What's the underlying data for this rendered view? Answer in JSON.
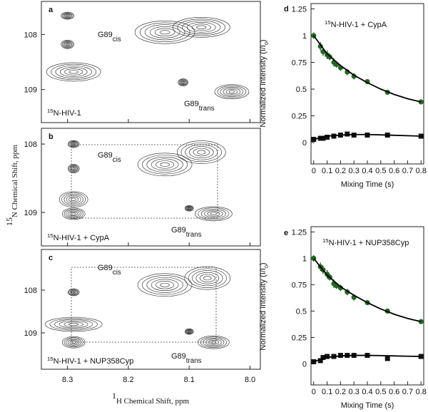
{
  "shared_axes": {
    "x_label": {
      "sup": "1",
      "text": "H Chemical Shift, ppm"
    },
    "y_label": {
      "sup": "15",
      "text": "N Chemical Shift, ppm"
    }
  },
  "chart_data": [
    {
      "type": "contour",
      "panel": "a",
      "xlim": [
        8.343,
        7.983
      ],
      "ylim": [
        109.6,
        107.4
      ],
      "xticks": [
        8.3,
        8.2,
        8.1,
        {
          "value": 8,
          "label": "8.0"
        }
      ],
      "yticks": [
        108,
        109
      ],
      "xtick_labels": false,
      "annotation": {
        "sup": "15",
        "text": "N-HIV-1"
      },
      "cis_label": {
        "text": "G89",
        "sub": "cis"
      },
      "trans_label": {
        "text": "G89",
        "sub": "trans"
      },
      "peaks": [
        {
          "x": 8.3,
          "y": 107.66
        },
        {
          "x": 8.3,
          "y": 108.18
        },
        {
          "x": 8.29,
          "y": 108.68
        },
        {
          "x": 8.14,
          "y": 107.96
        },
        {
          "x": 8.08,
          "y": 107.87
        },
        {
          "x": 8.11,
          "y": 108.87
        },
        {
          "x": 8.03,
          "y": 109.04
        }
      ]
    },
    {
      "type": "contour",
      "panel": "b",
      "xlim": [
        8.343,
        7.983
      ],
      "ylim": [
        109.49,
        107.77
      ],
      "xticks": [
        8.3,
        8.2,
        8.1,
        {
          "value": 8,
          "label": "8.0"
        }
      ],
      "yticks": [
        108,
        109
      ],
      "xtick_labels": false,
      "annotation": {
        "sup": "15",
        "text": "N-HIV-1 + CypA"
      },
      "cis_label": {
        "text": "G89",
        "sub": "cis"
      },
      "trans_label": {
        "text": "G89",
        "sub": "trans"
      },
      "peaks": [
        {
          "x": 8.29,
          "y": 108.0
        },
        {
          "x": 8.29,
          "y": 108.36
        },
        {
          "x": 8.29,
          "y": 108.81
        },
        {
          "x": 8.29,
          "y": 109.02
        },
        {
          "x": 8.14,
          "y": 108.3
        },
        {
          "x": 8.08,
          "y": 108.12
        },
        {
          "x": 8.1,
          "y": 108.94
        },
        {
          "x": 8.06,
          "y": 109.02
        }
      ]
    },
    {
      "type": "contour",
      "panel": "c",
      "xlim": [
        8.343,
        7.983
      ],
      "ylim": [
        109.85,
        107.05
      ],
      "xticks": [
        8.3,
        8.2,
        8.1,
        {
          "value": 8,
          "label": "8.0"
        }
      ],
      "yticks": [
        108,
        109
      ],
      "xtick_labels": true,
      "annotation": {
        "sup": "15",
        "text": "N-HIV-1 + NUP358Cyp"
      },
      "cis_label": {
        "text": "G89",
        "sub": "cis"
      },
      "trans_label": {
        "text": "G89",
        "sub": "trans"
      },
      "peaks": [
        {
          "x": 8.29,
          "y": 108.05
        },
        {
          "x": 8.29,
          "y": 108.8
        },
        {
          "x": 8.29,
          "y": 109.22
        },
        {
          "x": 8.14,
          "y": 107.88
        },
        {
          "x": 8.07,
          "y": 107.72
        },
        {
          "x": 8.1,
          "y": 108.97
        },
        {
          "x": 8.06,
          "y": 109.22
        }
      ]
    },
    {
      "type": "scatter",
      "panel": "d",
      "xlim": [
        -0.02,
        0.82
      ],
      "ylim": [
        -0.2,
        1.3
      ],
      "xticks": [
        0,
        0.1,
        0.2,
        0.3,
        0.4,
        0.5,
        0.6,
        0.7,
        0.8
      ],
      "yticks": [
        0,
        0.25,
        0.5,
        0.75,
        1,
        1.25
      ],
      "x_label": "Mixing Time (s)",
      "y_label": {
        "text": "Normalized Intensity (I/I",
        "sub": "0",
        "end": ")"
      },
      "annotation": {
        "sup": "15",
        "text": "N-HIV-1 + CypA"
      },
      "series": [
        {
          "marker": "circle",
          "color": "#1e6b1e",
          "x": [
            0,
            0.05,
            0.07,
            0.1,
            0.12,
            0.15,
            0.17,
            0.2,
            0.25,
            0.3,
            0.4,
            0.55,
            0.8
          ],
          "values": [
            1.0,
            0.9,
            0.85,
            0.82,
            0.8,
            0.75,
            0.73,
            0.7,
            0.66,
            0.62,
            0.57,
            0.47,
            0.38
          ],
          "errors": [
            0.03,
            0.04,
            0.04,
            0.04,
            0.03,
            0.04,
            0.03,
            0.03,
            0.03,
            0.03,
            0.02,
            0.02,
            0.01
          ]
        },
        {
          "marker": "square",
          "color": "#111111",
          "x": [
            0,
            0.05,
            0.07,
            0.1,
            0.15,
            0.2,
            0.25,
            0.3,
            0.4,
            0.55,
            0.8
          ],
          "values": [
            0.03,
            0.04,
            0.04,
            0.05,
            0.06,
            0.07,
            0.08,
            0.07,
            0.07,
            0.07,
            0.06
          ]
        },
        {
          "marker": "line",
          "color": "#000000",
          "x": [
            0,
            0.1,
            0.2,
            0.3,
            0.4,
            0.5,
            0.6,
            0.7,
            0.8
          ],
          "values": [
            1.0,
            0.83,
            0.72,
            0.63,
            0.56,
            0.5,
            0.45,
            0.41,
            0.38
          ]
        },
        {
          "marker": "line",
          "color": "#000000",
          "x": [
            0,
            0.1,
            0.2,
            0.3,
            0.4,
            0.5,
            0.6,
            0.7,
            0.8
          ],
          "values": [
            0.03,
            0.06,
            0.07,
            0.075,
            0.075,
            0.072,
            0.068,
            0.064,
            0.06
          ]
        }
      ]
    },
    {
      "type": "scatter",
      "panel": "e",
      "xlim": [
        -0.02,
        0.82
      ],
      "ylim": [
        -0.2,
        1.3
      ],
      "xticks": [
        0,
        0.1,
        0.2,
        0.3,
        0.4,
        0.5,
        0.6,
        0.7,
        0.8
      ],
      "yticks": [
        0,
        0.25,
        0.5,
        0.75,
        1,
        1.25
      ],
      "x_label": "Mixing Time (s)",
      "y_label": {
        "text": "Normalized Intensity (I/I",
        "sub": "0",
        "end": ")"
      },
      "annotation": {
        "sup": "15",
        "text": "N-HIV-1 + NUP358Cyp"
      },
      "series": [
        {
          "marker": "circle",
          "color": "#1e6b1e",
          "x": [
            0,
            0.05,
            0.07,
            0.1,
            0.12,
            0.15,
            0.17,
            0.2,
            0.25,
            0.3,
            0.4,
            0.55,
            0.8
          ],
          "values": [
            1.0,
            0.92,
            0.89,
            0.85,
            0.82,
            0.76,
            0.74,
            0.72,
            0.68,
            0.63,
            0.58,
            0.5,
            0.4
          ],
          "errors": [
            0.03,
            0.04,
            0.04,
            0.04,
            0.03,
            0.04,
            0.03,
            0.03,
            0.03,
            0.03,
            0.02,
            0.02,
            0.01
          ]
        },
        {
          "marker": "square",
          "color": "#111111",
          "x": [
            0,
            0.05,
            0.07,
            0.1,
            0.15,
            0.2,
            0.25,
            0.3,
            0.4,
            0.55,
            0.8
          ],
          "values": [
            0.02,
            0.03,
            0.06,
            0.07,
            0.07,
            0.08,
            0.08,
            0.08,
            0.08,
            0.05,
            0.07
          ]
        },
        {
          "marker": "line",
          "color": "#000000",
          "x": [
            0,
            0.1,
            0.2,
            0.3,
            0.4,
            0.5,
            0.6,
            0.7,
            0.8
          ],
          "values": [
            1.0,
            0.84,
            0.73,
            0.65,
            0.58,
            0.52,
            0.47,
            0.43,
            0.4
          ]
        },
        {
          "marker": "line",
          "color": "#000000",
          "x": [
            0,
            0.1,
            0.2,
            0.3,
            0.4,
            0.5,
            0.6,
            0.7,
            0.8
          ],
          "values": [
            0.02,
            0.06,
            0.075,
            0.08,
            0.08,
            0.078,
            0.075,
            0.072,
            0.07
          ]
        }
      ]
    }
  ]
}
